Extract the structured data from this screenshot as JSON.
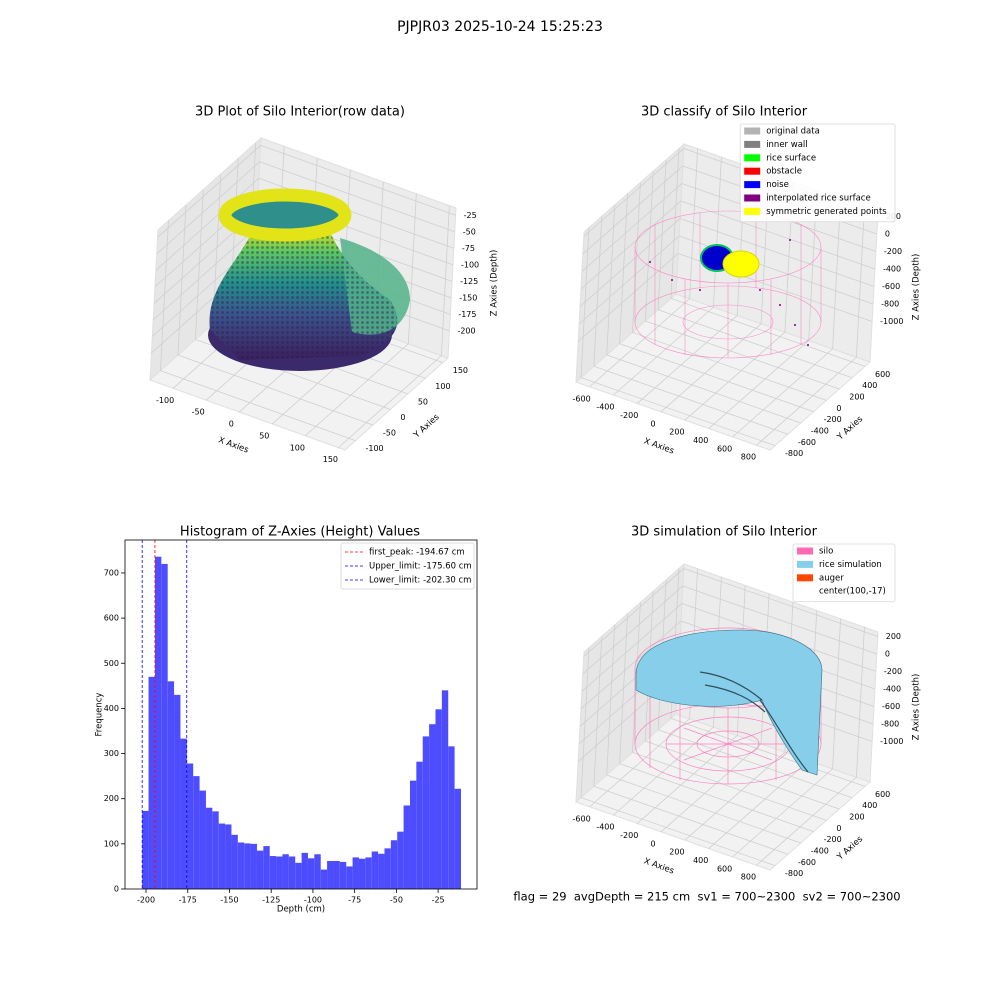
{
  "title": "PJPJR03 2025-10-24 15:25:23",
  "footer": "flag = 29  avgDepth = 215 cm  sv1 = 700~2300  sv2 = 700~2300",
  "chart_data": [
    {
      "type": "scatter3d",
      "title": "3D Plot of Silo Interior(row data)",
      "xlabel": "X Axies",
      "ylabel": "Y Axies",
      "zlabel": "Z Axies (Depth)",
      "xlim": [
        -135,
        160
      ],
      "ylim": [
        -130,
        165
      ],
      "zlim": [
        -241,
        -14
      ],
      "xticks": [
        -100,
        -50,
        0,
        50,
        100,
        150
      ],
      "yticks": [
        -100,
        -50,
        0,
        50,
        100,
        150
      ],
      "zticks": [
        -200,
        -175,
        -150,
        -125,
        -100,
        -75,
        -50,
        -25
      ],
      "grid": true
    },
    {
      "type": "scatter3d",
      "title": "3D classify of Silo Interior",
      "xlabel": "X Axies",
      "ylabel": "Y Axies",
      "zlabel": "Z Axies (Depth)",
      "xlim": [
        -714,
        914
      ],
      "ylim": [
        -878,
        678
      ],
      "zlim": [
        -1463,
        251
      ],
      "xticks": [
        -600,
        -400,
        -200,
        0,
        200,
        400,
        600,
        800
      ],
      "yticks": [
        -800,
        -600,
        -400,
        -200,
        0,
        200,
        400,
        600
      ],
      "zticks": [
        -1000,
        -800,
        -600,
        -400,
        -200,
        0,
        200
      ],
      "grid": true,
      "legend_loc": "upper right",
      "legend": [
        {
          "name": "original data",
          "color": "#b3b3b3"
        },
        {
          "name": "inner wall",
          "color": "#808080"
        },
        {
          "name": "rice surface",
          "color": "#00ff00"
        },
        {
          "name": "obstacle",
          "color": "#ff0000"
        },
        {
          "name": "noise",
          "color": "#0000ff"
        },
        {
          "name": "interpolated rice surface",
          "color": "#800080"
        },
        {
          "name": "symmetric generated points",
          "color": "#ffff00"
        }
      ]
    },
    {
      "type": "histogram",
      "title": "Histogram of Z-Axies (Height) Values",
      "xlabel": "Depth (cm)",
      "ylabel": "Frequency",
      "color": "#4d4dff",
      "bins": [
        -202.3,
        -198.48,
        -194.66,
        -190.84,
        -187.02,
        -183.2,
        -179.38,
        -175.56,
        -171.74,
        -167.92,
        -164.1,
        -160.28,
        -156.46,
        -152.64,
        -148.82,
        -145,
        -141.18,
        -137.36,
        -133.54,
        -129.72,
        -125.9,
        -122.08,
        -118.26,
        -114.44,
        -110.62,
        -106.8,
        -102.98,
        -99.16,
        -95.34,
        -91.52,
        -87.7,
        -83.88,
        -80.06,
        -76.24,
        -72.42,
        -68.6,
        -64.78,
        -60.96,
        -57.14,
        -53.32,
        -49.5,
        -45.68,
        -41.86,
        -38.04,
        -34.22,
        -30.4,
        -26.58,
        -22.76,
        -18.94,
        -15.12,
        -11.3
      ],
      "values": [
        173,
        470,
        736,
        720,
        460,
        430,
        333,
        278,
        250,
        218,
        180,
        172,
        145,
        143,
        120,
        103,
        101,
        100,
        85,
        95,
        73,
        72,
        77,
        72,
        58,
        80,
        68,
        77,
        43,
        62,
        62,
        60,
        50,
        70,
        67,
        70,
        83,
        78,
        90,
        108,
        127,
        185,
        240,
        282,
        338,
        365,
        398,
        440,
        316,
        222
      ],
      "xlim": [
        -212.6,
        -1.7
      ],
      "ylim": [
        0,
        773
      ],
      "xticks": [
        -200,
        -175,
        -150,
        -125,
        -100,
        -75,
        -50,
        -25
      ],
      "yticks": [
        0,
        100,
        200,
        300,
        400,
        500,
        600,
        700
      ],
      "vlines": [
        {
          "name": "first_peak: -194.67 cm",
          "value": -194.67,
          "color": "#ff0000"
        },
        {
          "name": "Upper_limit: -175.60 cm",
          "value": -175.6,
          "color": "#0000ff"
        },
        {
          "name": "Lower_limit: -202.30 cm",
          "value": -202.3,
          "color": "#0000ff"
        }
      ],
      "legend_loc": "upper right"
    },
    {
      "type": "surface3d",
      "title": "3D simulation of Silo Interior",
      "xlabel": "X Axies",
      "ylabel": "Y Axies",
      "zlabel": "Z Axies (Depth)",
      "xlim": [
        -714,
        914
      ],
      "ylim": [
        -878,
        678
      ],
      "zlim": [
        -1463,
        251
      ],
      "xticks": [
        -600,
        -400,
        -200,
        0,
        200,
        400,
        600,
        800
      ],
      "yticks": [
        -800,
        -600,
        -400,
        -200,
        0,
        200,
        400,
        600
      ],
      "zticks": [
        -1000,
        -800,
        -600,
        -400,
        -200,
        0,
        200
      ],
      "grid": true,
      "legend_loc": "upper right",
      "legend": [
        {
          "name": "silo",
          "color": "#ff69b4"
        },
        {
          "name": "rice simulation",
          "color": "#87ceeb"
        },
        {
          "name": "auger",
          "color": "#ff4500"
        },
        {
          "name": "center(100,-17)"
        }
      ]
    }
  ]
}
